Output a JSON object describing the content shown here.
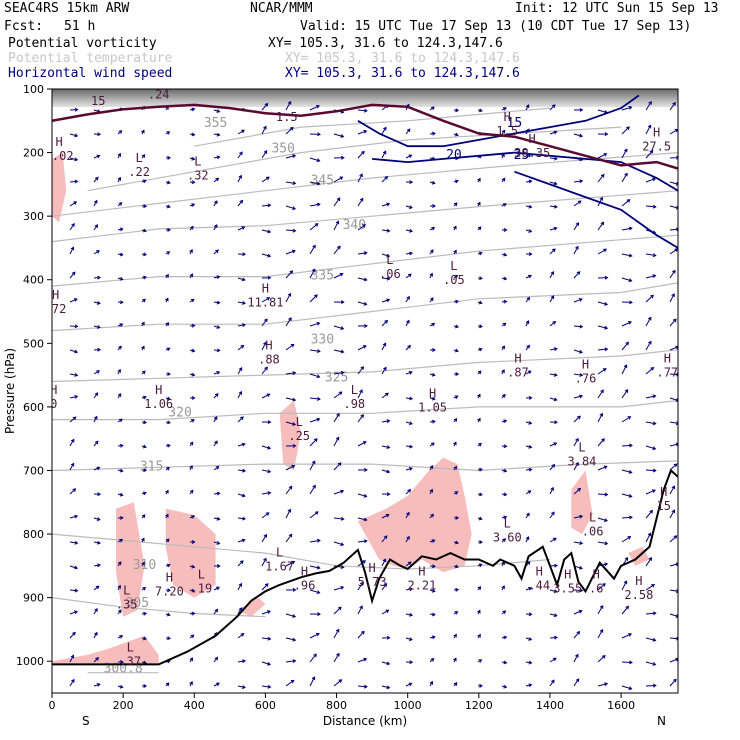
{
  "header": {
    "model": "SEAC4RS 15km ARW",
    "org": "NCAR/MMM",
    "init": "Init: 12 UTC Sun 15 Sep 13",
    "fcst_label": "Fcst:",
    "fcst_value": "51 h",
    "valid": "Valid: 15 UTC Tue 17 Sep 13 (10 CDT Tue 17 Sep 13)",
    "fields": [
      {
        "name": "Potential vorticity",
        "xy": "XY= 105.3, 31.6 to 124.3,147.6"
      },
      {
        "name": "Potential temperature",
        "xy": "XY= 105.3, 31.6 to 124.3,147.6"
      },
      {
        "name": "Horizontal wind speed",
        "xy": "XY= 105.3, 31.6 to 124.3,147.6"
      }
    ]
  },
  "chart_data": {
    "type": "cross-section",
    "xlabel": "Distance (km)",
    "ylabel": "Pressure (hPa)",
    "xlim": [
      0,
      1760
    ],
    "ylim": [
      1050,
      100
    ],
    "x_ticks": [
      0,
      200,
      400,
      600,
      800,
      1000,
      1200,
      1400,
      1600
    ],
    "y_ticks": [
      100,
      200,
      300,
      400,
      500,
      600,
      700,
      800,
      900,
      1000
    ],
    "x_tick_labels": [
      "0",
      "200",
      "400",
      "600",
      "800",
      "1000",
      "1200",
      "1400",
      "1600"
    ],
    "y_tick_labels": [
      "100",
      "200",
      "300",
      "400",
      "500",
      "600",
      "700",
      "800",
      "900",
      "1000"
    ],
    "end_labels": {
      "left": "S",
      "right": "N"
    },
    "colors": {
      "pv_fill": "#f7bcbc",
      "theta": "#bbbbbb",
      "wind": "#00007a",
      "pv_line": "#5a0a32",
      "terrain": "#000000"
    },
    "terrain": [
      [
        0,
        1005
      ],
      [
        300,
        1005
      ],
      [
        380,
        985
      ],
      [
        460,
        960
      ],
      [
        520,
        930
      ],
      [
        560,
        905
      ],
      [
        600,
        890
      ],
      [
        640,
        880
      ],
      [
        700,
        868
      ],
      [
        740,
        862
      ],
      [
        780,
        858
      ],
      [
        820,
        845
      ],
      [
        860,
        825
      ],
      [
        880,
        860
      ],
      [
        900,
        905
      ],
      [
        920,
        870
      ],
      [
        950,
        840
      ],
      [
        980,
        850
      ],
      [
        1000,
        855
      ],
      [
        1040,
        835
      ],
      [
        1080,
        840
      ],
      [
        1120,
        830
      ],
      [
        1160,
        840
      ],
      [
        1200,
        840
      ],
      [
        1240,
        850
      ],
      [
        1260,
        840
      ],
      [
        1300,
        850
      ],
      [
        1320,
        870
      ],
      [
        1340,
        835
      ],
      [
        1380,
        820
      ],
      [
        1400,
        850
      ],
      [
        1420,
        880
      ],
      [
        1440,
        840
      ],
      [
        1460,
        830
      ],
      [
        1480,
        875
      ],
      [
        1500,
        890
      ],
      [
        1540,
        845
      ],
      [
        1580,
        870
      ],
      [
        1600,
        850
      ],
      [
        1640,
        840
      ],
      [
        1680,
        820
      ],
      [
        1720,
        730
      ],
      [
        1740,
        700
      ],
      [
        1760,
        710
      ]
    ],
    "theta_contours": [
      {
        "label": "355",
        "label_at": [
          460,
          160
        ],
        "points": [
          [
            400,
            190
          ],
          [
            700,
            160
          ],
          [
            1000,
            150
          ],
          [
            1200,
            140
          ],
          [
            1400,
            130
          ]
        ]
      },
      {
        "label": "350",
        "label_at": [
          650,
          200
        ],
        "points": [
          [
            100,
            260
          ],
          [
            400,
            230
          ],
          [
            700,
            200
          ],
          [
            1000,
            180
          ],
          [
            1300,
            170
          ],
          [
            1600,
            160
          ]
        ]
      },
      {
        "label": "345",
        "label_at": [
          760,
          250
        ],
        "points": [
          [
            0,
            300
          ],
          [
            300,
            280
          ],
          [
            600,
            260
          ],
          [
            900,
            240
          ],
          [
            1300,
            220
          ],
          [
            1760,
            200
          ]
        ]
      },
      {
        "label": "340",
        "label_at": [
          850,
          320
        ],
        "points": [
          [
            0,
            340
          ],
          [
            300,
            320
          ],
          [
            600,
            315
          ],
          [
            900,
            300
          ],
          [
            1200,
            285
          ],
          [
            1760,
            260
          ]
        ]
      },
      {
        "label": "335",
        "label_at": [
          760,
          400
        ],
        "points": [
          [
            0,
            410
          ],
          [
            300,
            395
          ],
          [
            600,
            395
          ],
          [
            900,
            375
          ],
          [
            1200,
            355
          ],
          [
            1760,
            330
          ]
        ]
      },
      {
        "label": "330",
        "label_at": [
          760,
          500
        ],
        "points": [
          [
            0,
            480
          ],
          [
            300,
            470
          ],
          [
            600,
            470
          ],
          [
            900,
            450
          ],
          [
            1200,
            430
          ],
          [
            1600,
            420
          ],
          [
            1760,
            405
          ]
        ]
      },
      {
        "label": "325",
        "label_at": [
          800,
          560
        ],
        "points": [
          [
            0,
            560
          ],
          [
            300,
            555
          ],
          [
            600,
            550
          ],
          [
            900,
            545
          ],
          [
            1200,
            530
          ],
          [
            1600,
            520
          ],
          [
            1760,
            510
          ]
        ]
      },
      {
        "label": "320",
        "label_at": [
          360,
          615
        ],
        "points": [
          [
            0,
            620
          ],
          [
            300,
            620
          ],
          [
            600,
            610
          ],
          [
            900,
            610
          ],
          [
            1200,
            600
          ],
          [
            1600,
            600
          ],
          [
            1760,
            590
          ]
        ]
      },
      {
        "label": "315",
        "label_at": [
          280,
          700
        ],
        "points": [
          [
            0,
            700
          ],
          [
            300,
            695
          ],
          [
            600,
            690
          ],
          [
            900,
            690
          ],
          [
            1200,
            700
          ],
          [
            1500,
            690
          ],
          [
            1760,
            685
          ]
        ]
      },
      {
        "label": "310",
        "label_at": [
          260,
          855
        ],
        "points": [
          [
            0,
            800
          ],
          [
            200,
            810
          ],
          [
            400,
            820
          ],
          [
            600,
            830
          ],
          [
            800,
            850
          ],
          [
            1000,
            855
          ],
          [
            1200,
            850
          ],
          [
            1400,
            840
          ]
        ]
      },
      {
        "label": "305",
        "label_at": [
          240,
          915
        ],
        "points": [
          [
            0,
            900
          ],
          [
            200,
            915
          ],
          [
            400,
            925
          ],
          [
            600,
            930
          ]
        ]
      },
      {
        "label": "300.8",
        "label_at": [
          200,
          1018
        ],
        "points": [
          [
            100,
            1018
          ],
          [
            300,
            1018
          ]
        ]
      }
    ],
    "wind_contours": [
      {
        "label": "15",
        "label_at": [
          1300,
          160
        ],
        "points": [
          [
            860,
            150
          ],
          [
            920,
            170
          ],
          [
            1000,
            190
          ],
          [
            1100,
            190
          ],
          [
            1200,
            180
          ],
          [
            1300,
            170
          ],
          [
            1400,
            160
          ],
          [
            1500,
            150
          ],
          [
            1600,
            130
          ],
          [
            1650,
            110
          ]
        ]
      },
      {
        "label": "20",
        "label_at": [
          1130,
          210
        ],
        "points": [
          [
            900,
            210
          ],
          [
            1000,
            215
          ],
          [
            1100,
            210
          ],
          [
            1200,
            205
          ],
          [
            1300,
            200
          ],
          [
            1400,
            205
          ],
          [
            1500,
            210
          ],
          [
            1600,
            215
          ],
          [
            1700,
            240
          ],
          [
            1760,
            260
          ]
        ]
      },
      {
        "label": "25",
        "label_at": [
          1320,
          210
        ],
        "points": [
          [
            1300,
            230
          ],
          [
            1400,
            250
          ],
          [
            1500,
            270
          ],
          [
            1600,
            290
          ],
          [
            1700,
            330
          ],
          [
            1760,
            350
          ]
        ]
      }
    ],
    "pv_highs_lows": [
      {
        "kind": "H",
        "x": 20,
        "y": 190,
        "value": "1.02"
      },
      {
        "kind": "L",
        "x": 245,
        "y": 215,
        "value": ".22"
      },
      {
        "kind": "L",
        "x": 410,
        "y": 220,
        "value": ".32"
      },
      {
        "kind": "L",
        "x": 950,
        "y": 375,
        "value": ".06"
      },
      {
        "kind": "L",
        "x": 1130,
        "y": 385,
        "value": ".05"
      },
      {
        "kind": "H",
        "x": 600,
        "y": 420,
        "value": "11.81"
      },
      {
        "kind": "H",
        "x": 10,
        "y": 430,
        "value": ".72"
      },
      {
        "kind": "H",
        "x": 610,
        "y": 510,
        "value": ".88"
      },
      {
        "kind": "H",
        "x": 1310,
        "y": 530,
        "value": ".87"
      },
      {
        "kind": "H",
        "x": 1500,
        "y": 540,
        "value": ".76"
      },
      {
        "kind": "H",
        "x": 1730,
        "y": 530,
        "value": ".77"
      },
      {
        "kind": "H",
        "x": 300,
        "y": 580,
        "value": "1.06"
      },
      {
        "kind": "L",
        "x": 850,
        "y": 580,
        "value": ".98"
      },
      {
        "kind": "H",
        "x": 1070,
        "y": 585,
        "value": "1.05"
      },
      {
        "kind": "H",
        "x": 5,
        "y": 580,
        "value": "0"
      },
      {
        "kind": "L",
        "x": 695,
        "y": 630,
        "value": ".25"
      },
      {
        "kind": "L",
        "x": 1490,
        "y": 670,
        "value": "3.84"
      },
      {
        "kind": "L",
        "x": 1280,
        "y": 790,
        "value": "3.60"
      },
      {
        "kind": "L",
        "x": 1520,
        "y": 780,
        "value": ".06"
      },
      {
        "kind": "H",
        "x": 1720,
        "y": 740,
        "value": "15"
      },
      {
        "kind": "L",
        "x": 640,
        "y": 835,
        "value": "1.67"
      },
      {
        "kind": "H",
        "x": 710,
        "y": 865,
        "value": ".96"
      },
      {
        "kind": "H",
        "x": 900,
        "y": 860,
        "value": "5.73"
      },
      {
        "kind": "H",
        "x": 1040,
        "y": 865,
        "value": "2.21"
      },
      {
        "kind": "H",
        "x": 1370,
        "y": 865,
        "value": ".44"
      },
      {
        "kind": "H",
        "x": 1450,
        "y": 870,
        "value": "3.55"
      },
      {
        "kind": "H",
        "x": 1530,
        "y": 870,
        "value": ".6"
      },
      {
        "kind": "H",
        "x": 1650,
        "y": 880,
        "value": "2.58"
      },
      {
        "kind": "L",
        "x": 210,
        "y": 895,
        "value": ".35"
      },
      {
        "kind": "H",
        "x": 330,
        "y": 875,
        "value": "7.20"
      },
      {
        "kind": "L",
        "x": 420,
        "y": 870,
        "value": ".19"
      },
      {
        "kind": "L",
        "x": 220,
        "y": 985,
        "value": ".37"
      },
      {
        "kind": "H",
        "x": 1700,
        "y": 175,
        "value": "27.5"
      },
      {
        "kind": "H",
        "x": 1280,
        "y": 150,
        "value": "1.5"
      },
      {
        "kind": "H",
        "x": 1350,
        "y": 185,
        "value": "30.35"
      }
    ],
    "top_labels": [
      {
        "x": 130,
        "y": 125,
        "text": "15"
      },
      {
        "x": 300,
        "y": 115,
        "text": ".24"
      },
      {
        "x": 660,
        "y": 150,
        "text": "1.5"
      }
    ],
    "pv_positive_regions": [
      [
        [
          0,
          210
        ],
        [
          30,
          200
        ],
        [
          40,
          260
        ],
        [
          20,
          310
        ],
        [
          0,
          300
        ]
      ],
      [
        [
          180,
          760
        ],
        [
          230,
          750
        ],
        [
          260,
          850
        ],
        [
          240,
          920
        ],
        [
          200,
          930
        ],
        [
          180,
          860
        ]
      ],
      [
        [
          320,
          760
        ],
        [
          400,
          770
        ],
        [
          460,
          800
        ],
        [
          460,
          880
        ],
        [
          400,
          900
        ],
        [
          340,
          880
        ],
        [
          320,
          820
        ]
      ],
      [
        [
          640,
          610
        ],
        [
          680,
          590
        ],
        [
          700,
          640
        ],
        [
          680,
          700
        ],
        [
          650,
          690
        ]
      ],
      [
        [
          860,
          780
        ],
        [
          940,
          760
        ],
        [
          1000,
          740
        ],
        [
          1060,
          700
        ],
        [
          1100,
          680
        ],
        [
          1140,
          690
        ],
        [
          1160,
          740
        ],
        [
          1180,
          800
        ],
        [
          1160,
          850
        ],
        [
          1100,
          860
        ],
        [
          1040,
          840
        ],
        [
          1000,
          855
        ],
        [
          960,
          850
        ],
        [
          920,
          840
        ]
      ],
      [
        [
          1460,
          730
        ],
        [
          1500,
          700
        ],
        [
          1520,
          770
        ],
        [
          1490,
          800
        ],
        [
          1460,
          790
        ]
      ],
      [
        [
          0,
          1000
        ],
        [
          100,
          990
        ],
        [
          160,
          980
        ],
        [
          260,
          960
        ],
        [
          300,
          990
        ],
        [
          300,
          1005
        ],
        [
          0,
          1005
        ]
      ],
      [
        [
          520,
          920
        ],
        [
          580,
          900
        ],
        [
          600,
          910
        ],
        [
          560,
          930
        ]
      ],
      [
        [
          1620,
          830
        ],
        [
          1660,
          820
        ],
        [
          1680,
          840
        ],
        [
          1640,
          850
        ]
      ]
    ]
  }
}
